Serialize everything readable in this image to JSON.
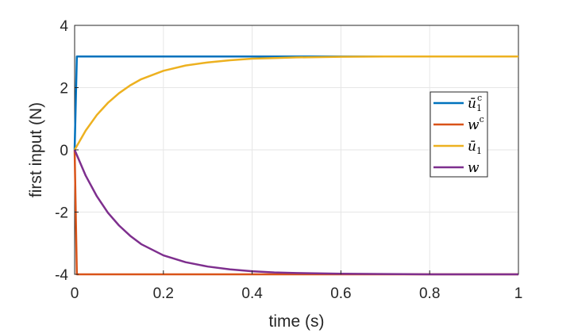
{
  "chart_data": {
    "type": "line",
    "title": "",
    "xlabel": "time (s)",
    "ylabel": "first input (N)",
    "xlim": [
      0,
      1
    ],
    "ylim": [
      -4,
      4
    ],
    "xticks": [
      0,
      0.2,
      0.4,
      0.6,
      0.8,
      1
    ],
    "xtick_labels": [
      "0",
      "0.2",
      "0.4",
      "0.6",
      "0.8",
      "1"
    ],
    "yticks": [
      -4,
      -2,
      0,
      2,
      4
    ],
    "ytick_labels": [
      "-4",
      "-2",
      "0",
      "2",
      "4"
    ],
    "grid": true,
    "legend_position": "right",
    "series": [
      {
        "name": "ū₁ᶜ",
        "legend_base": "ū",
        "legend_sub": "1",
        "legend_sup": "c",
        "color": "#0072BD",
        "x": [
          0,
          0.005,
          1
        ],
        "y": [
          0,
          3,
          3
        ]
      },
      {
        "name": "wᶜ",
        "legend_base": "w",
        "legend_sub": "",
        "legend_sup": "c",
        "color": "#D95319",
        "x": [
          0,
          0.005,
          1
        ],
        "y": [
          0,
          -4,
          -4
        ]
      },
      {
        "name": "ū₁",
        "legend_base": "ū",
        "legend_sub": "1",
        "legend_sup": "",
        "color": "#EDB120",
        "x": [
          0,
          0.025,
          0.05,
          0.075,
          0.1,
          0.125,
          0.15,
          0.2,
          0.25,
          0.3,
          0.35,
          0.4,
          0.45,
          0.5,
          0.6,
          0.7,
          0.8,
          0.9,
          1.0
        ],
        "y": [
          0,
          0.62,
          1.12,
          1.51,
          1.82,
          2.07,
          2.27,
          2.54,
          2.71,
          2.81,
          2.88,
          2.93,
          2.95,
          2.97,
          2.99,
          3.0,
          3.0,
          3.0,
          3.0
        ]
      },
      {
        "name": "w",
        "legend_base": "w",
        "legend_sub": "",
        "legend_sup": "",
        "color": "#7E2F8E",
        "x": [
          0,
          0.025,
          0.05,
          0.075,
          0.1,
          0.125,
          0.15,
          0.2,
          0.25,
          0.3,
          0.35,
          0.4,
          0.45,
          0.5,
          0.6,
          0.7,
          0.8,
          0.9,
          1.0
        ],
        "y": [
          0,
          -0.83,
          -1.49,
          -2.02,
          -2.43,
          -2.76,
          -3.03,
          -3.39,
          -3.61,
          -3.75,
          -3.84,
          -3.9,
          -3.94,
          -3.96,
          -3.98,
          -3.99,
          -4.0,
          -4.0,
          -4.0
        ]
      }
    ]
  }
}
